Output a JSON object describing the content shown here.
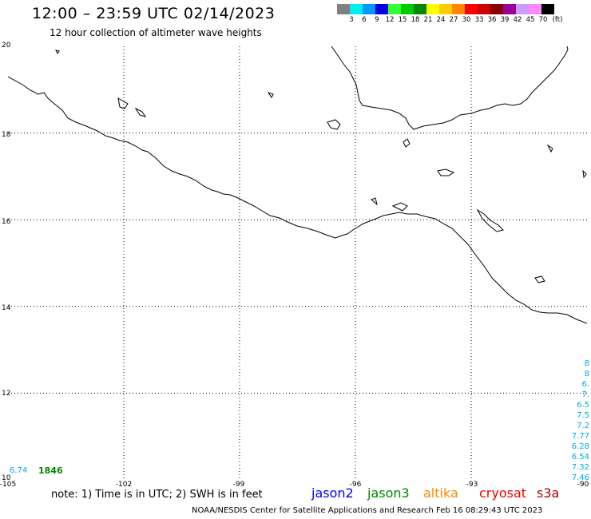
{
  "header": {
    "title": "12:00 – 23:59 UTC 02/14/2023",
    "subtitle": "12 hour collection of altimeter wave heights"
  },
  "legend": {
    "unit": "(ft)",
    "levels": [
      {
        "label": "3",
        "color": "#808080"
      },
      {
        "label": "6",
        "color": "#00eeee"
      },
      {
        "label": "9",
        "color": "#0099ff"
      },
      {
        "label": "12",
        "color": "#0000dd"
      },
      {
        "label": "15",
        "color": "#33ff33"
      },
      {
        "label": "18",
        "color": "#00cc00"
      },
      {
        "label": "21",
        "color": "#008800"
      },
      {
        "label": "24",
        "color": "#ffff00"
      },
      {
        "label": "27",
        "color": "#ffcc00"
      },
      {
        "label": "30",
        "color": "#ff8800"
      },
      {
        "label": "33",
        "color": "#ff0000"
      },
      {
        "label": "36",
        "color": "#cc0000"
      },
      {
        "label": "39",
        "color": "#880000"
      },
      {
        "label": "42",
        "color": "#990099"
      },
      {
        "label": "45",
        "color": "#cc99ff"
      },
      {
        "label": "70",
        "color": "#ff88ff"
      },
      {
        "label": "",
        "color": "#000000"
      }
    ]
  },
  "map": {
    "lon_range": [
      -105,
      -90
    ],
    "lat_range": [
      10,
      20
    ],
    "lat_labels": [
      "20",
      "18",
      "16",
      "14",
      "12",
      "10"
    ],
    "lon_labels": [
      "-105",
      "-102",
      "-99",
      "-96",
      "-93",
      "-90"
    ],
    "coast_color": "#000000",
    "grid_color": "#000000"
  },
  "readings": {
    "left_swh": "6.74",
    "left_time": "1846",
    "right_column": [
      "8",
      "8",
      "6.",
      "7.",
      "6.5",
      "7.5",
      "7.2",
      "7.77",
      "6.28",
      "6.54",
      "7.32",
      "7.46"
    ]
  },
  "footer": {
    "note": "note: 1) Time is in UTC; 2) SWH is in feet",
    "satellites": [
      {
        "name": "jason2",
        "color": "#0000ee"
      },
      {
        "name": "jason3",
        "color": "#008800"
      },
      {
        "name": "altika",
        "color": "#ff8800"
      },
      {
        "name": "cryosat",
        "color": "#ee0000"
      },
      {
        "name": "s3a",
        "color": "#aa0000"
      }
    ],
    "credit": "NOAA/NESDIS Center for Satellite Applications and Research    Feb 16 08:29:43 UTC 2023"
  }
}
